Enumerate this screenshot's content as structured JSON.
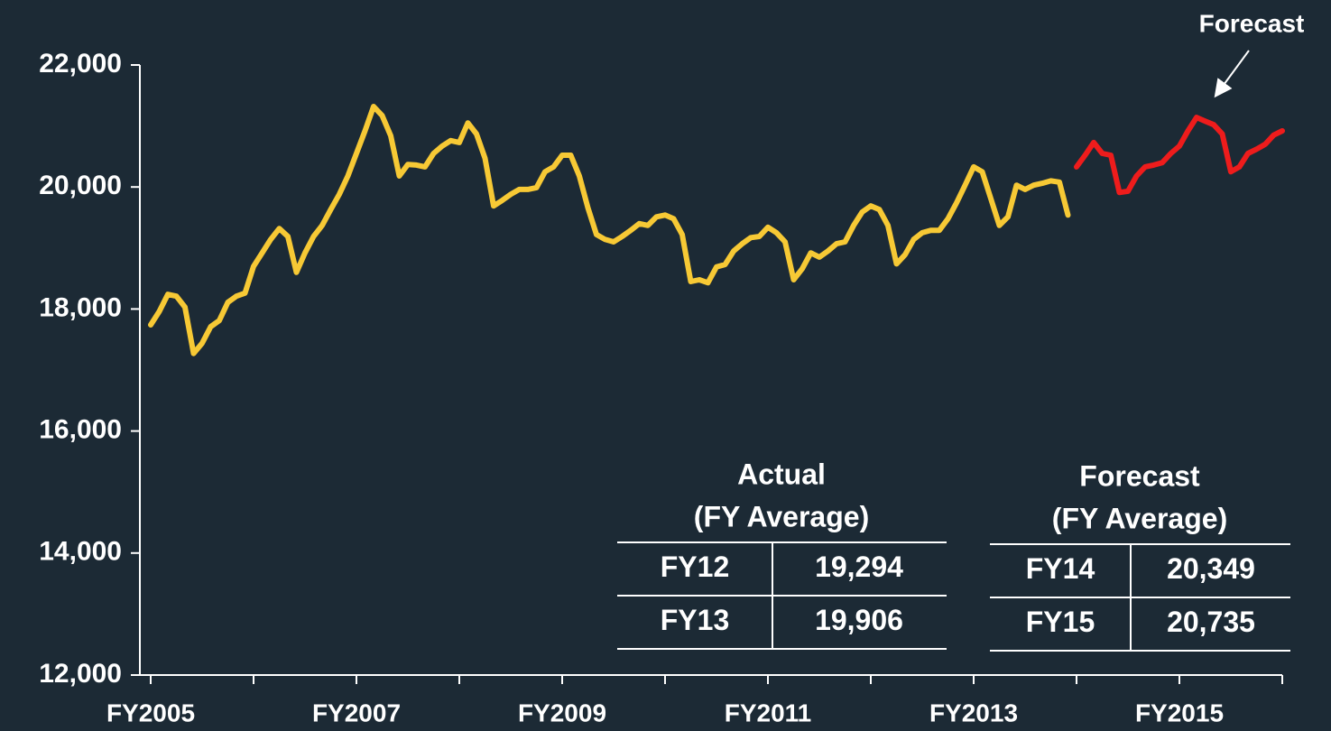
{
  "chart_data": {
    "type": "line",
    "annotation": "Forecast",
    "categories": [
      "FY2005",
      null,
      null,
      null,
      null,
      null,
      null,
      null,
      null,
      null,
      null,
      null,
      null,
      null,
      null,
      null,
      null,
      null,
      null,
      null,
      null,
      null,
      null,
      null,
      "FY2007",
      null,
      null,
      null,
      null,
      null,
      null,
      null,
      null,
      null,
      null,
      null,
      null,
      null,
      null,
      null,
      null,
      null,
      null,
      null,
      null,
      null,
      null,
      null,
      "FY2009",
      null,
      null,
      null,
      null,
      null,
      null,
      null,
      null,
      null,
      null,
      null,
      null,
      null,
      null,
      null,
      null,
      null,
      null,
      null,
      null,
      null,
      null,
      null,
      "FY2011",
      null,
      null,
      null,
      null,
      null,
      null,
      null,
      null,
      null,
      null,
      null,
      null,
      null,
      null,
      null,
      null,
      null,
      null,
      null,
      null,
      null,
      null,
      null,
      "FY2013",
      null,
      null,
      null,
      null,
      null,
      null,
      null,
      null,
      null,
      null,
      null,
      null,
      null,
      null,
      null,
      null,
      null,
      null,
      null,
      null,
      null,
      null,
      null,
      "FY2015",
      null,
      null,
      null,
      null,
      null,
      null,
      null,
      null,
      null,
      null,
      null,
      null
    ],
    "series": [
      {
        "color": "#f7c935",
        "values": [
          17740,
          17960,
          18240,
          18210,
          18030,
          17270,
          17440,
          17710,
          17810,
          18110,
          18210,
          18260,
          18700,
          18920,
          19140,
          19320,
          19190,
          18600,
          18920,
          19190,
          19370,
          19630,
          19880,
          20180,
          20550,
          20920,
          21320,
          21170,
          20840,
          20180,
          20370,
          20360,
          20330,
          20550,
          20670,
          20760,
          20730,
          21050,
          20870,
          20470,
          19690,
          19780,
          19880,
          19960,
          19960,
          19990,
          20250,
          20330,
          20520,
          20520,
          20180,
          19660,
          19220,
          19140,
          19100,
          19190,
          19290,
          19400,
          19370,
          19510,
          19540,
          19480,
          19220,
          18450,
          18480,
          18430,
          18690,
          18730,
          18950,
          19070,
          19170,
          19190,
          19340,
          19250,
          19100,
          18480,
          18660,
          18920,
          18850,
          18950,
          19070,
          19100,
          19370,
          19590,
          19690,
          19630,
          19370,
          18740,
          18890,
          19140,
          19250,
          19290,
          19290,
          19480,
          19740,
          20030,
          20330,
          20250,
          19810,
          19370,
          19510,
          20030,
          19960,
          20030,
          20060,
          20100,
          20080,
          19540,
          null,
          null,
          null,
          null,
          null,
          null,
          null,
          null,
          null,
          null,
          null,
          null,
          null,
          null,
          null,
          null,
          null,
          null,
          null,
          null,
          null,
          null,
          null,
          null,
          null
        ]
      },
      {
        "color": "#ee1c1c",
        "values": [
          null,
          null,
          null,
          null,
          null,
          null,
          null,
          null,
          null,
          null,
          null,
          null,
          null,
          null,
          null,
          null,
          null,
          null,
          null,
          null,
          null,
          null,
          null,
          null,
          null,
          null,
          null,
          null,
          null,
          null,
          null,
          null,
          null,
          null,
          null,
          null,
          null,
          null,
          null,
          null,
          null,
          null,
          null,
          null,
          null,
          null,
          null,
          null,
          null,
          null,
          null,
          null,
          null,
          null,
          null,
          null,
          null,
          null,
          null,
          null,
          null,
          null,
          null,
          null,
          null,
          null,
          null,
          null,
          null,
          null,
          null,
          null,
          null,
          null,
          null,
          null,
          null,
          null,
          null,
          null,
          null,
          null,
          null,
          null,
          null,
          null,
          null,
          null,
          null,
          null,
          null,
          null,
          null,
          null,
          null,
          null,
          null,
          null,
          null,
          null,
          null,
          null,
          null,
          null,
          null,
          null,
          null,
          null,
          20330,
          20520,
          20730,
          20550,
          20520,
          19910,
          19930,
          20180,
          20330,
          20360,
          20400,
          20550,
          20670,
          20920,
          21140,
          21080,
          21020,
          20870,
          20250,
          20330,
          20550,
          20620,
          20700,
          20850,
          20920
        ]
      }
    ],
    "ylim": [
      12000,
      22000
    ],
    "yticks": [
      {
        "value": 12000,
        "label": "12,000"
      },
      {
        "value": 14000,
        "label": "14,000"
      },
      {
        "value": 16000,
        "label": "16,000"
      },
      {
        "value": 18000,
        "label": "18,000"
      },
      {
        "value": 20000,
        "label": "20,000"
      },
      {
        "value": 22000,
        "label": "22,000"
      }
    ]
  },
  "tables": [
    {
      "title": "Actual",
      "subtitle": "(FY Average)",
      "rows": [
        [
          "FY12",
          "19,294"
        ],
        [
          "FY13",
          "19,906"
        ]
      ]
    },
    {
      "title": "Forecast",
      "subtitle": "(FY Average)",
      "rows": [
        [
          "FY14",
          "20,349"
        ],
        [
          "FY15",
          "20,735"
        ]
      ]
    }
  ]
}
